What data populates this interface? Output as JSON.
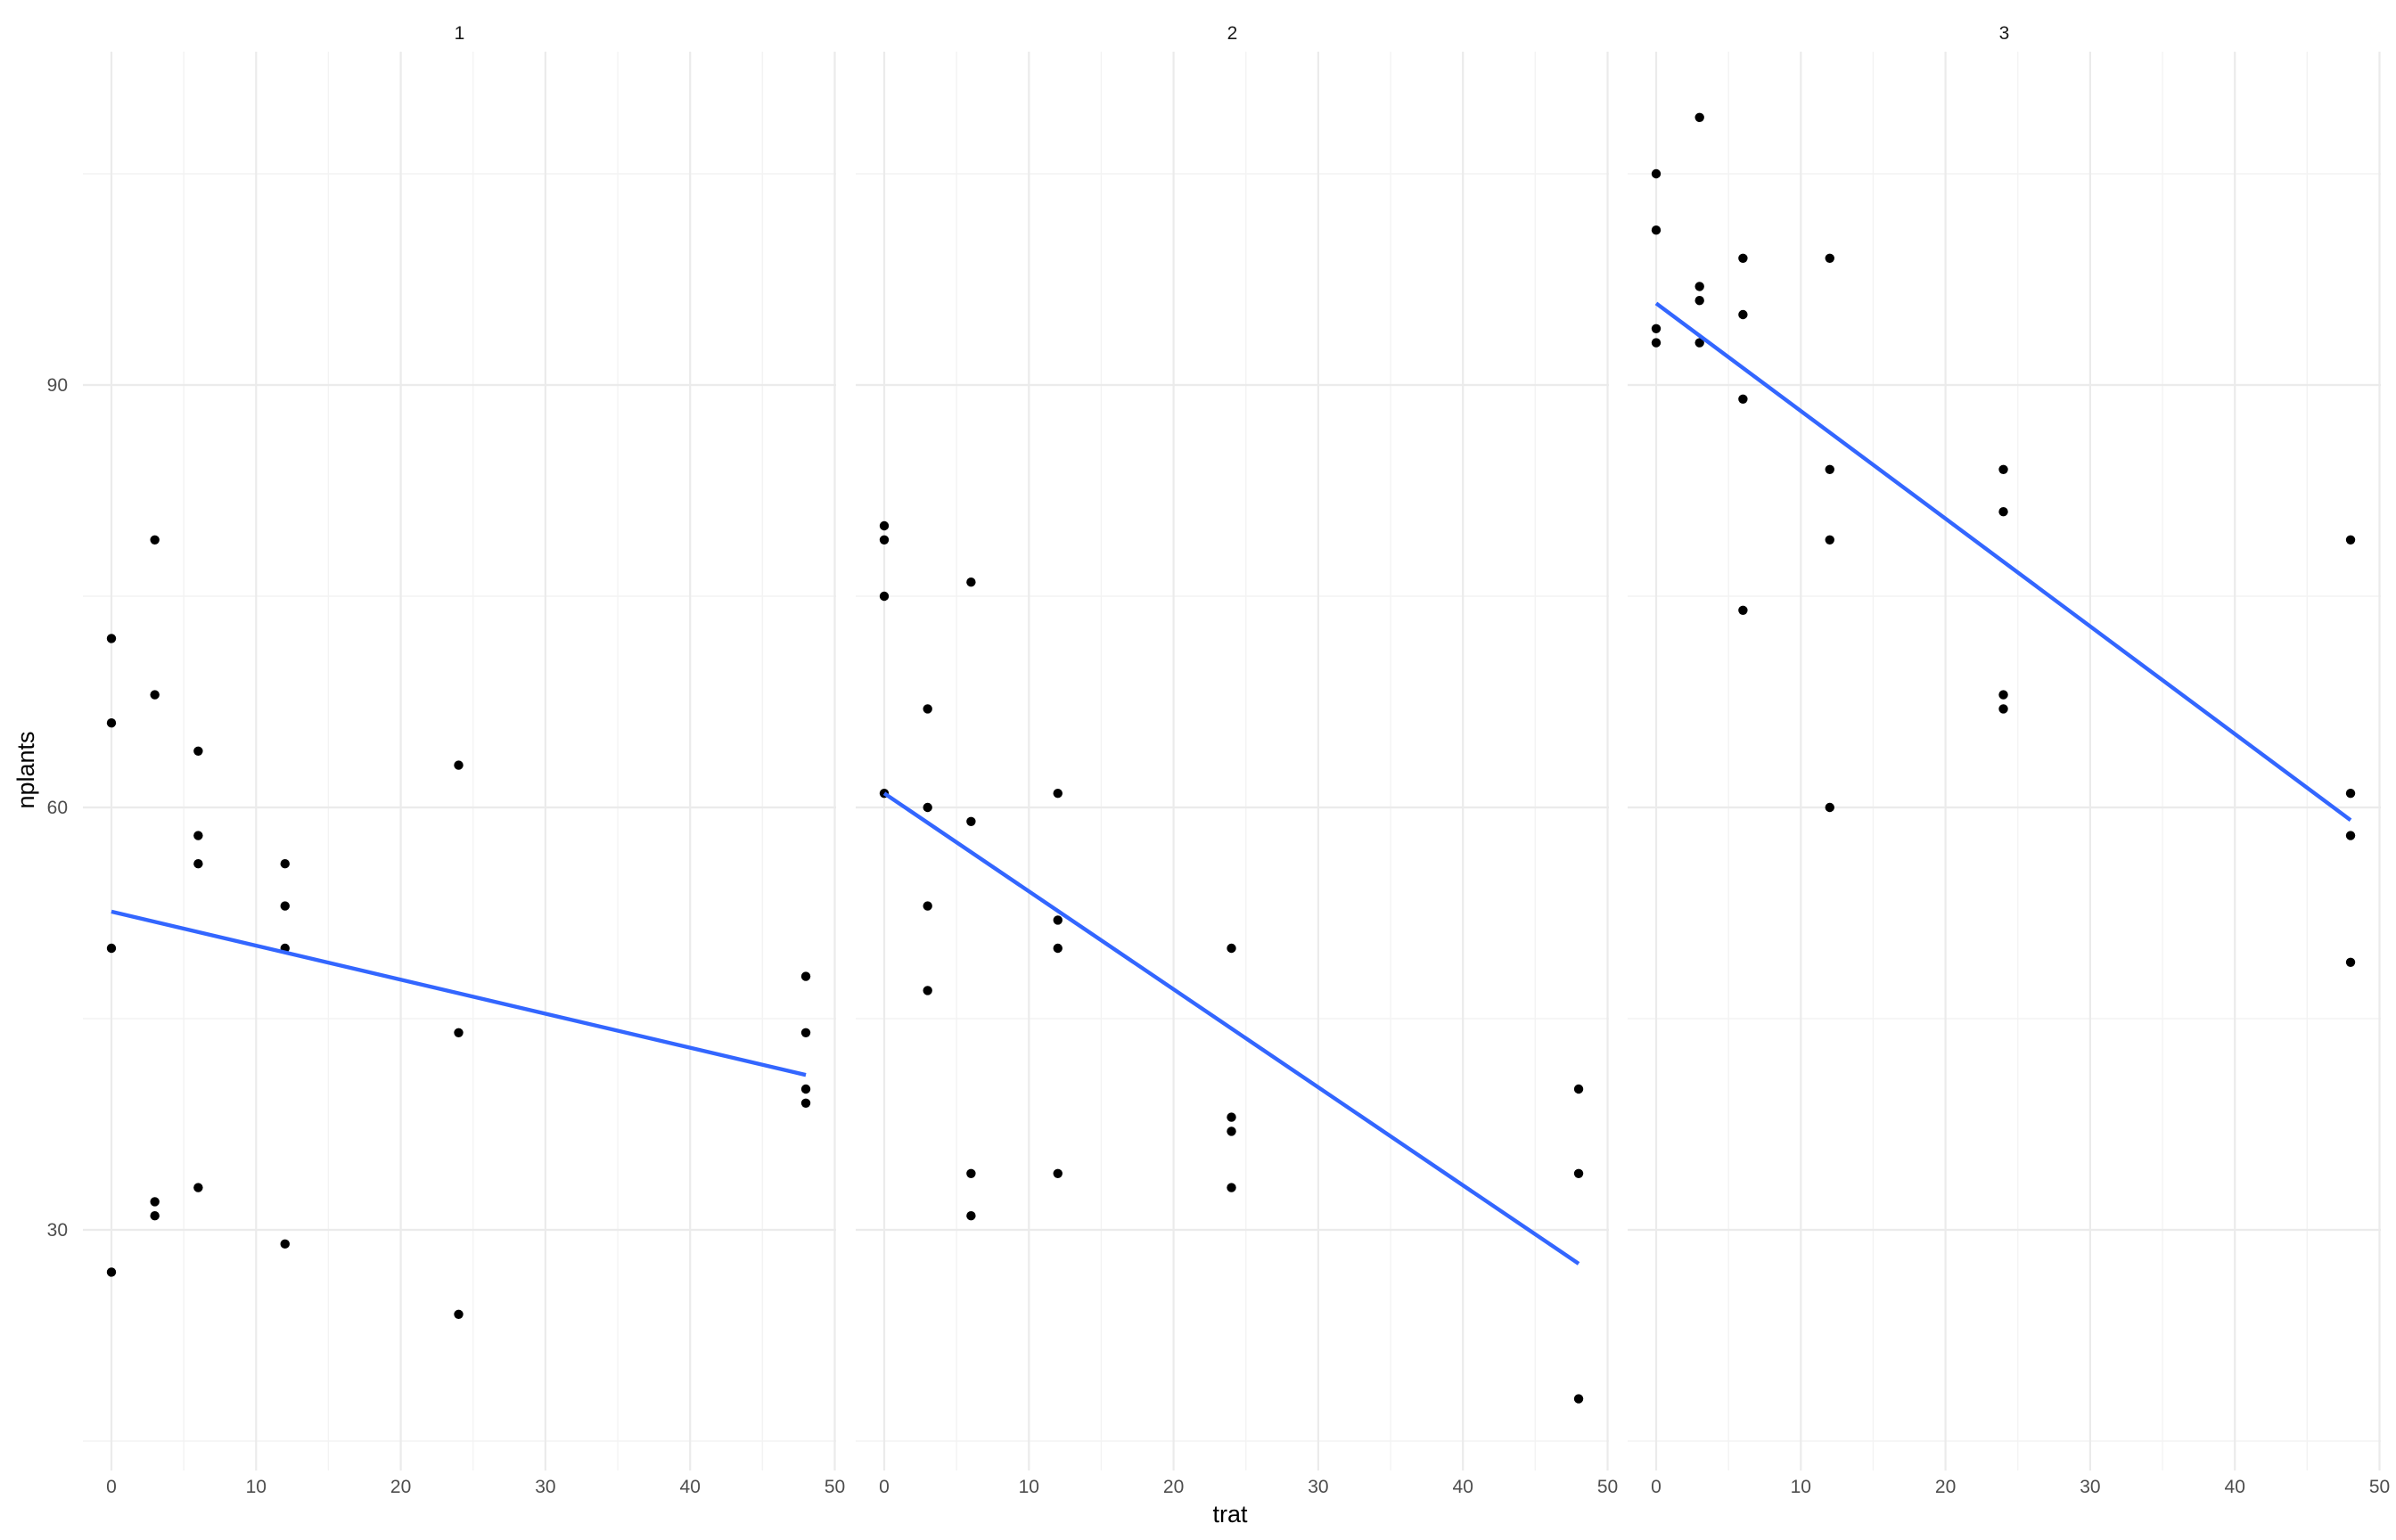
{
  "chart_data": {
    "type": "scatter",
    "xlabel": "trat",
    "ylabel": "nplants",
    "xlim": [
      0,
      50
    ],
    "ylim": [
      15,
      108
    ],
    "x_ticks": [
      "0",
      "10",
      "20",
      "30",
      "40",
      "50"
    ],
    "y_ticks": [
      "30",
      "60",
      "90"
    ],
    "grid": true,
    "legend": "none",
    "colors": {
      "points": "#000000",
      "fit_line": "#3366ff",
      "grid": "#ebebeb"
    },
    "panels": [
      {
        "strip": "1",
        "points": [
          [
            0,
            72
          ],
          [
            0,
            66
          ],
          [
            0,
            50
          ],
          [
            0,
            27
          ],
          [
            3,
            79
          ],
          [
            3,
            68
          ],
          [
            3,
            32
          ],
          [
            3,
            31
          ],
          [
            6,
            64
          ],
          [
            6,
            58
          ],
          [
            6,
            56
          ],
          [
            6,
            33
          ],
          [
            12,
            56
          ],
          [
            12,
            53
          ],
          [
            12,
            50
          ],
          [
            12,
            29
          ],
          [
            24,
            63
          ],
          [
            24,
            44
          ],
          [
            24,
            24
          ],
          [
            48,
            48
          ],
          [
            48,
            44
          ],
          [
            48,
            40
          ],
          [
            48,
            39
          ]
        ],
        "fit": {
          "x": [
            0,
            48
          ],
          "y": [
            52.6,
            41.0
          ]
        }
      },
      {
        "strip": "2",
        "points": [
          [
            0,
            80
          ],
          [
            0,
            79
          ],
          [
            0,
            75
          ],
          [
            0,
            61
          ],
          [
            3,
            67
          ],
          [
            3,
            60
          ],
          [
            3,
            53
          ],
          [
            3,
            47
          ],
          [
            6,
            76
          ],
          [
            6,
            59
          ],
          [
            6,
            34
          ],
          [
            6,
            31
          ],
          [
            12,
            61
          ],
          [
            12,
            52
          ],
          [
            12,
            50
          ],
          [
            12,
            34
          ],
          [
            24,
            50
          ],
          [
            24,
            38
          ],
          [
            24,
            37
          ],
          [
            24,
            33
          ],
          [
            48,
            40
          ],
          [
            48,
            34
          ],
          [
            48,
            18
          ]
        ],
        "fit": {
          "x": [
            0,
            48
          ],
          "y": [
            61.0,
            27.6
          ]
        }
      },
      {
        "strip": "3",
        "points": [
          [
            0,
            105
          ],
          [
            0,
            101
          ],
          [
            0,
            94
          ],
          [
            0,
            93
          ],
          [
            3,
            109
          ],
          [
            3,
            97
          ],
          [
            3,
            96
          ],
          [
            3,
            93
          ],
          [
            6,
            99
          ],
          [
            6,
            95
          ],
          [
            6,
            89
          ],
          [
            6,
            74
          ],
          [
            12,
            99
          ],
          [
            12,
            84
          ],
          [
            12,
            79
          ],
          [
            12,
            60
          ],
          [
            24,
            84
          ],
          [
            24,
            81
          ],
          [
            24,
            68
          ],
          [
            24,
            67
          ],
          [
            48,
            79
          ],
          [
            48,
            61
          ],
          [
            48,
            58
          ],
          [
            48,
            49
          ]
        ],
        "fit": {
          "x": [
            0,
            48
          ],
          "y": [
            95.8,
            59.1
          ]
        }
      }
    ]
  }
}
